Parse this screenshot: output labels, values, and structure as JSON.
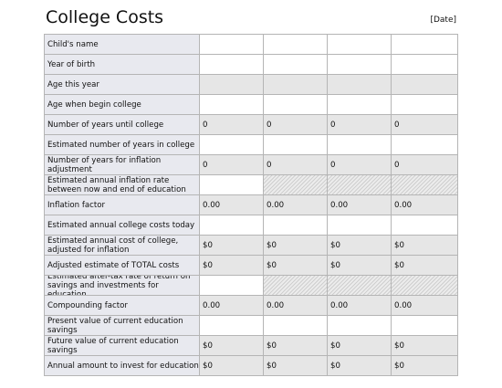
{
  "header": {
    "title": "College Costs",
    "date": "[Date]"
  },
  "table": {
    "rows": [
      {
        "label": "Child's name",
        "style": "input"
      },
      {
        "label": "Year of birth",
        "style": "input"
      },
      {
        "label": "Age this year",
        "style": "calc"
      },
      {
        "label": "Age when begin college",
        "style": "input"
      },
      {
        "label": "Number of years until college",
        "style": "calc",
        "values": [
          "0",
          "0",
          "0",
          "0"
        ]
      },
      {
        "label": "Estimated number of years in college",
        "style": "input"
      },
      {
        "label": "Number of years for inflation adjustment",
        "style": "calc",
        "values": [
          "0",
          "0",
          "0",
          "0"
        ]
      },
      {
        "label": "Estimated annual inflation rate between now and end of education",
        "style": "rate"
      },
      {
        "label": "Inflation factor",
        "style": "calc",
        "values": [
          "0.00",
          "0.00",
          "0.00",
          "0.00"
        ]
      },
      {
        "label": "Estimated annual college costs today",
        "style": "input"
      },
      {
        "label": "Estimated annual cost of college, adjusted for inflation",
        "style": "calc",
        "values": [
          "$0",
          "$0",
          "$0",
          "$0"
        ]
      },
      {
        "label": "Adjusted estimate of TOTAL costs",
        "style": "calc",
        "values": [
          "$0",
          "$0",
          "$0",
          "$0"
        ]
      },
      {
        "label": "Estimated after-tax rate of return on savings and investments for education",
        "style": "rate"
      },
      {
        "label": "Compounding factor",
        "style": "calc",
        "values": [
          "0.00",
          "0.00",
          "0.00",
          "0.00"
        ]
      },
      {
        "label": "Present value of current education savings",
        "style": "input"
      },
      {
        "label": "Future value of current education savings",
        "style": "calc",
        "values": [
          "$0",
          "$0",
          "$0",
          "$0"
        ]
      },
      {
        "label": "Annual amount to invest for education",
        "style": "calc",
        "values": [
          "$0",
          "$0",
          "$0",
          "$0"
        ]
      }
    ]
  }
}
